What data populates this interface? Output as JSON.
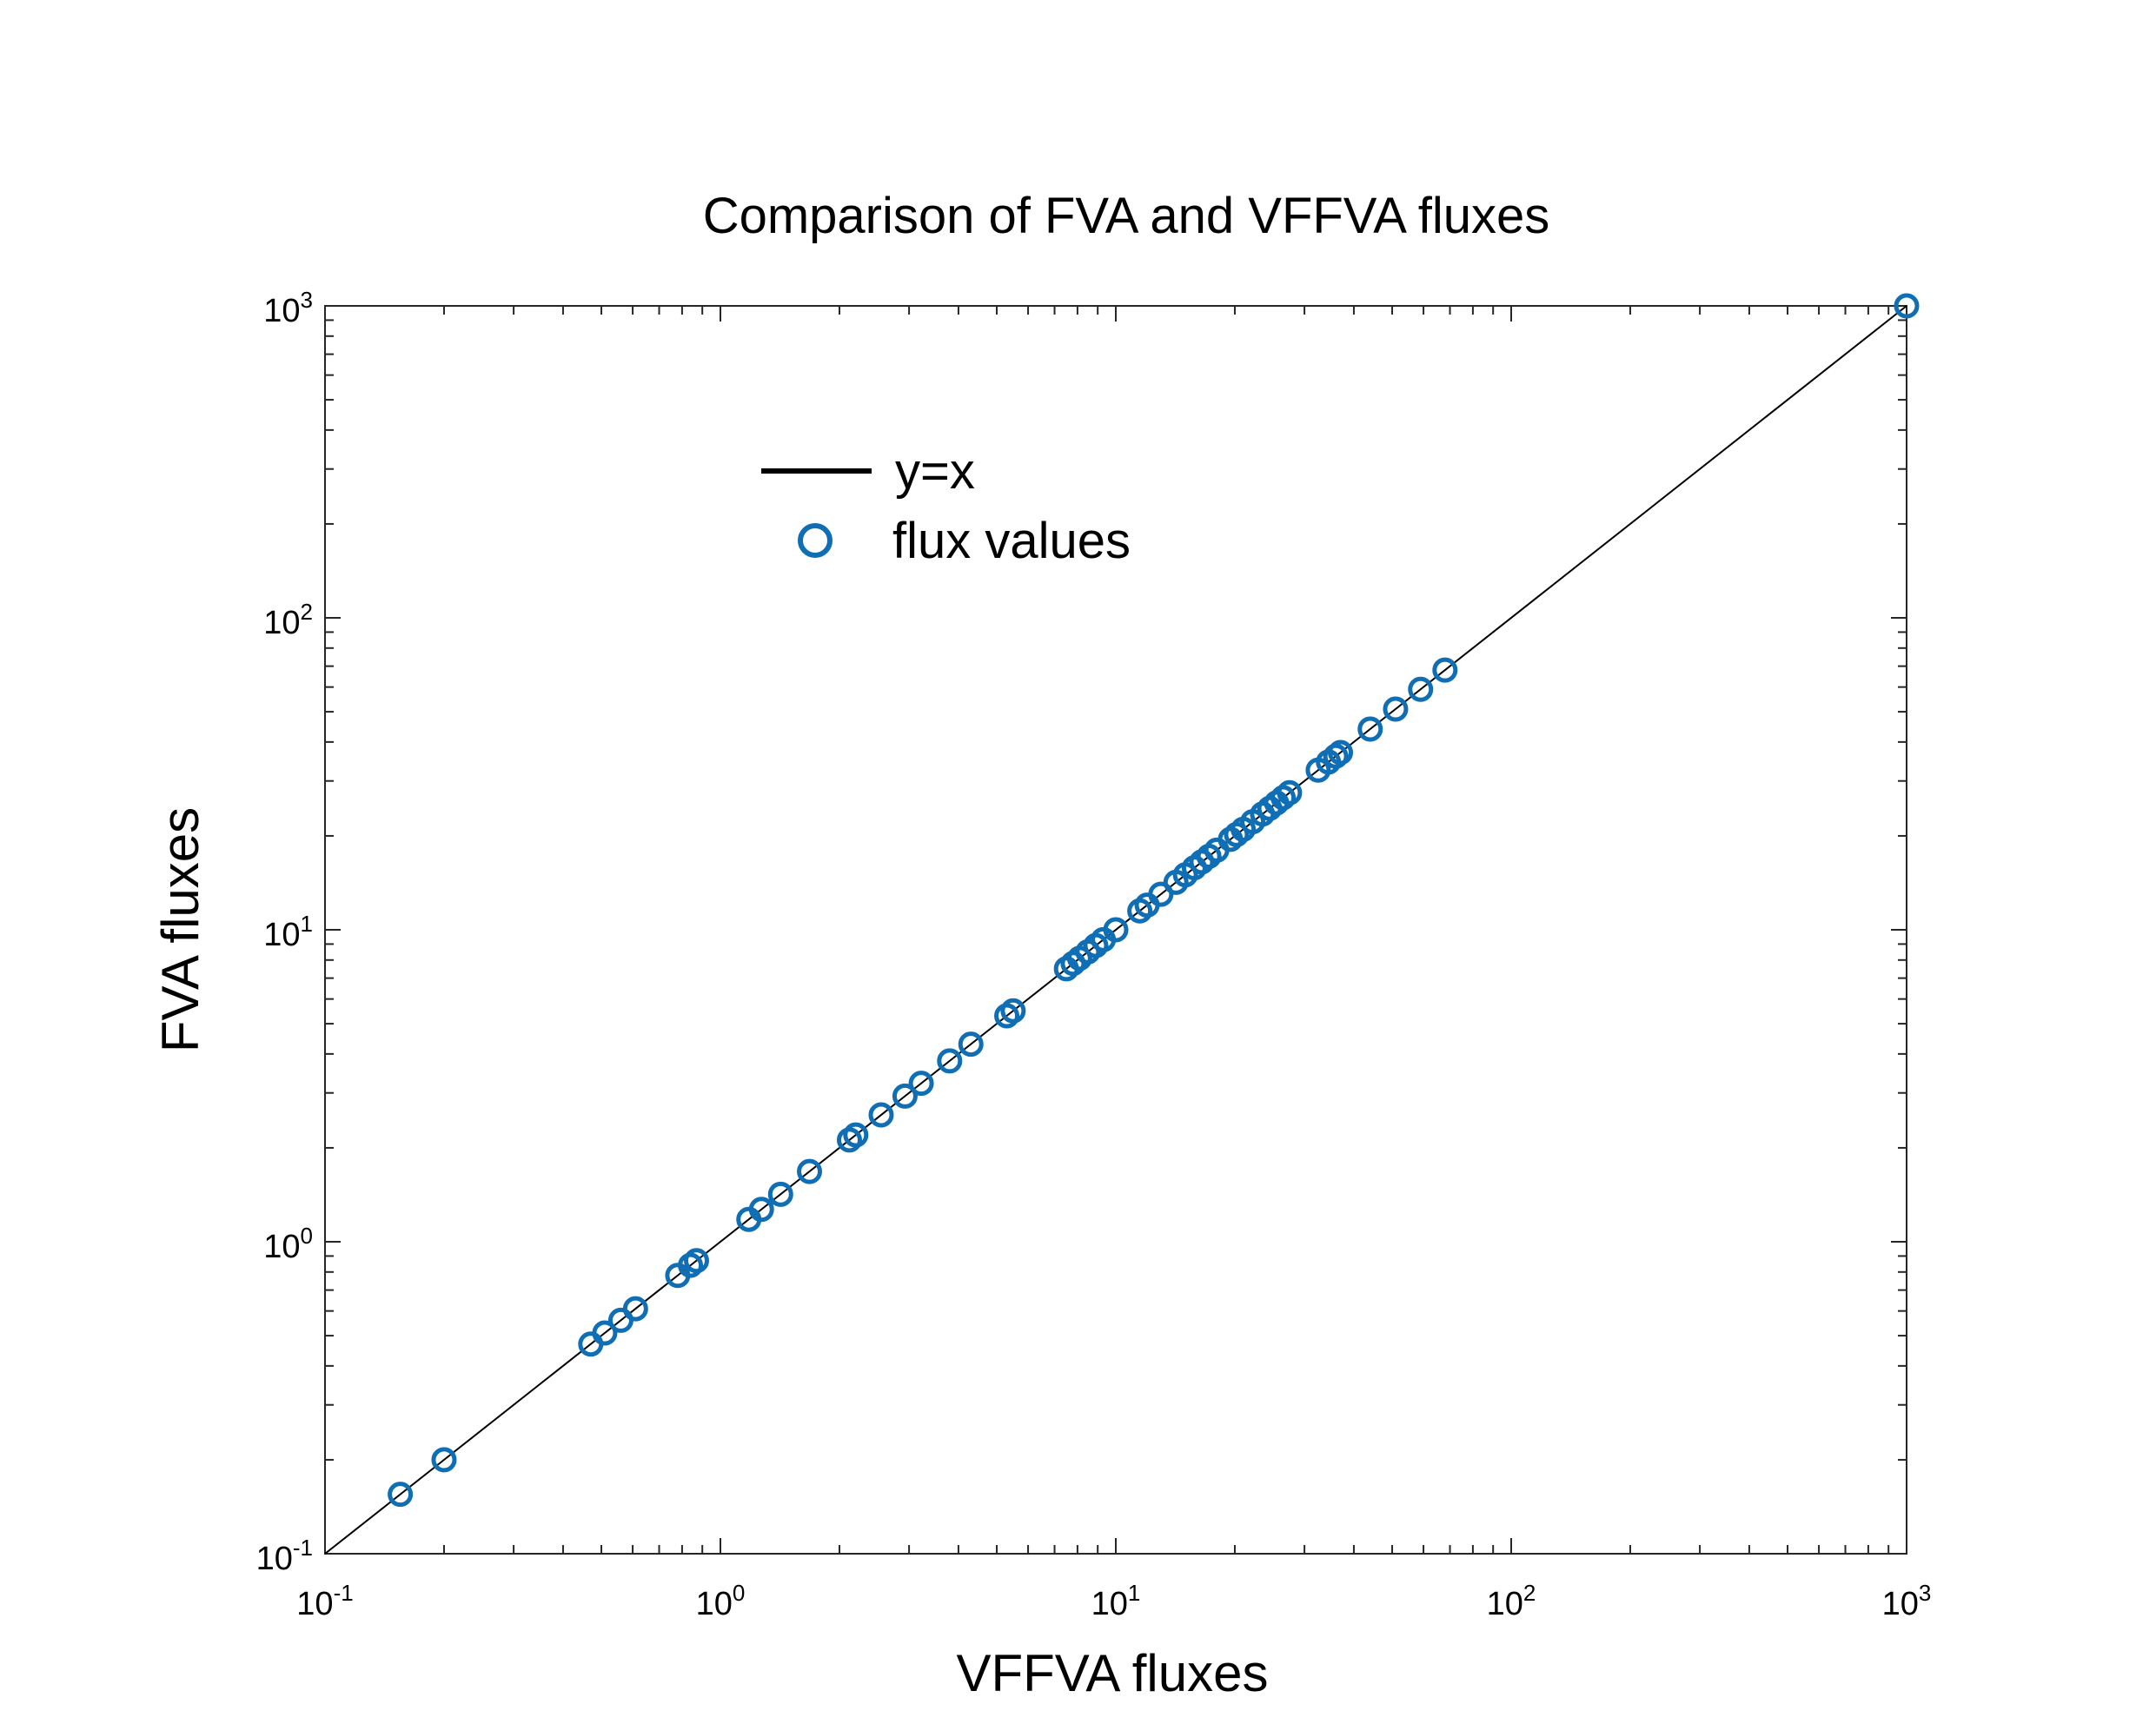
{
  "chart_data": {
    "type": "scatter",
    "title": "Comparison of FVA and VFFVA fluxes",
    "xlabel": "VFFVA fluxes",
    "ylabel": "FVA fluxes",
    "xscale": "log",
    "yscale": "log",
    "xlim": [
      0.1,
      1000
    ],
    "ylim": [
      0.1,
      1000
    ],
    "grid": false,
    "legend_position": "top-left",
    "x_tick_labels": [
      {
        "value": 0.1,
        "base": "10",
        "exp": "-1"
      },
      {
        "value": 1,
        "base": "10",
        "exp": "0"
      },
      {
        "value": 10,
        "base": "10",
        "exp": "1"
      },
      {
        "value": 100,
        "base": "10",
        "exp": "2"
      },
      {
        "value": 1000,
        "base": "10",
        "exp": "3"
      }
    ],
    "y_tick_labels": [
      {
        "value": 0.1,
        "base": "10",
        "exp": "-1"
      },
      {
        "value": 1,
        "base": "10",
        "exp": "0"
      },
      {
        "value": 10,
        "base": "10",
        "exp": "1"
      },
      {
        "value": 100,
        "base": "10",
        "exp": "2"
      },
      {
        "value": 1000,
        "base": "10",
        "exp": "3"
      }
    ],
    "series": [
      {
        "name": "y=x",
        "kind": "line",
        "color": "#000000",
        "x": [
          0.1,
          1000
        ],
        "y": [
          0.1,
          1000
        ]
      },
      {
        "name": "flux values",
        "kind": "scatter",
        "marker": "open-circle",
        "color": "#0f6eb4",
        "x": [
          0.155,
          0.2,
          0.47,
          0.51,
          0.56,
          0.61,
          0.78,
          0.84,
          0.87,
          1.18,
          1.27,
          1.42,
          1.68,
          2.12,
          2.2,
          2.55,
          2.93,
          3.22,
          3.8,
          4.3,
          5.3,
          5.5,
          7.5,
          7.8,
          8.1,
          8.5,
          8.9,
          9.3,
          10.0,
          11.5,
          12.0,
          13.0,
          14.2,
          15.0,
          15.8,
          16.5,
          17.2,
          18.0,
          19.5,
          20.2,
          21.0,
          22.2,
          23.5,
          24.5,
          25.5,
          26.5,
          27.5,
          32.5,
          34.5,
          36.0,
          37.0,
          44.0,
          51.0,
          59.0,
          68.0,
          1000
        ],
        "y": [
          0.155,
          0.2,
          0.47,
          0.51,
          0.56,
          0.61,
          0.78,
          0.84,
          0.87,
          1.18,
          1.27,
          1.42,
          1.68,
          2.12,
          2.2,
          2.55,
          2.93,
          3.22,
          3.8,
          4.3,
          5.3,
          5.5,
          7.5,
          7.8,
          8.1,
          8.5,
          8.9,
          9.3,
          10.0,
          11.5,
          12.0,
          13.0,
          14.2,
          15.0,
          15.8,
          16.5,
          17.2,
          18.0,
          19.5,
          20.2,
          21.0,
          22.2,
          23.5,
          24.5,
          25.5,
          26.5,
          27.5,
          32.5,
          34.5,
          36.0,
          37.0,
          44.0,
          51.0,
          59.0,
          68.0,
          1000
        ]
      }
    ]
  }
}
